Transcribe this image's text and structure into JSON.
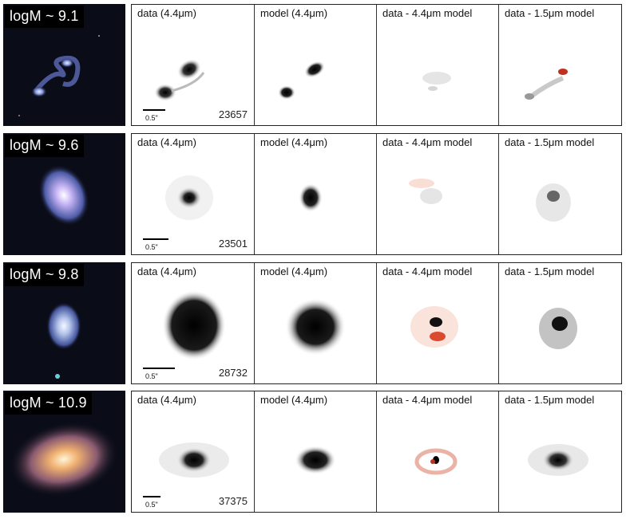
{
  "rows": [
    {
      "mass_label": "logM ~ 9.1",
      "galaxy_id": "23657",
      "scale_label": "0.5\"",
      "panels": [
        "data (4.4μm)",
        "model (4.4μm)",
        "data - 4.4μm model",
        "data - 1.5μm model"
      ]
    },
    {
      "mass_label": "logM ~ 9.6",
      "galaxy_id": "23501",
      "scale_label": "0.5\"",
      "panels": [
        "data (4.4μm)",
        "model (4.4μm)",
        "data - 4.4μm model",
        "data - 1.5μm model"
      ]
    },
    {
      "mass_label": "logM ~ 9.8",
      "galaxy_id": "28732",
      "scale_label": "0.5\"",
      "panels": [
        "data (4.4μm)",
        "model (4.4μm)",
        "data - 4.4μm model",
        "data - 1.5μm model"
      ]
    },
    {
      "mass_label": "logM ~ 10.9",
      "galaxy_id": "37375",
      "scale_label": "0.5\"",
      "panels": [
        "data (4.4μm)",
        "model (4.4μm)",
        "data - 4.4μm model",
        "data - 1.5μm model"
      ]
    }
  ],
  "colors": {
    "residual_positive": "#e05a3a",
    "residual_negative": "#111111",
    "background": "#ffffff"
  }
}
